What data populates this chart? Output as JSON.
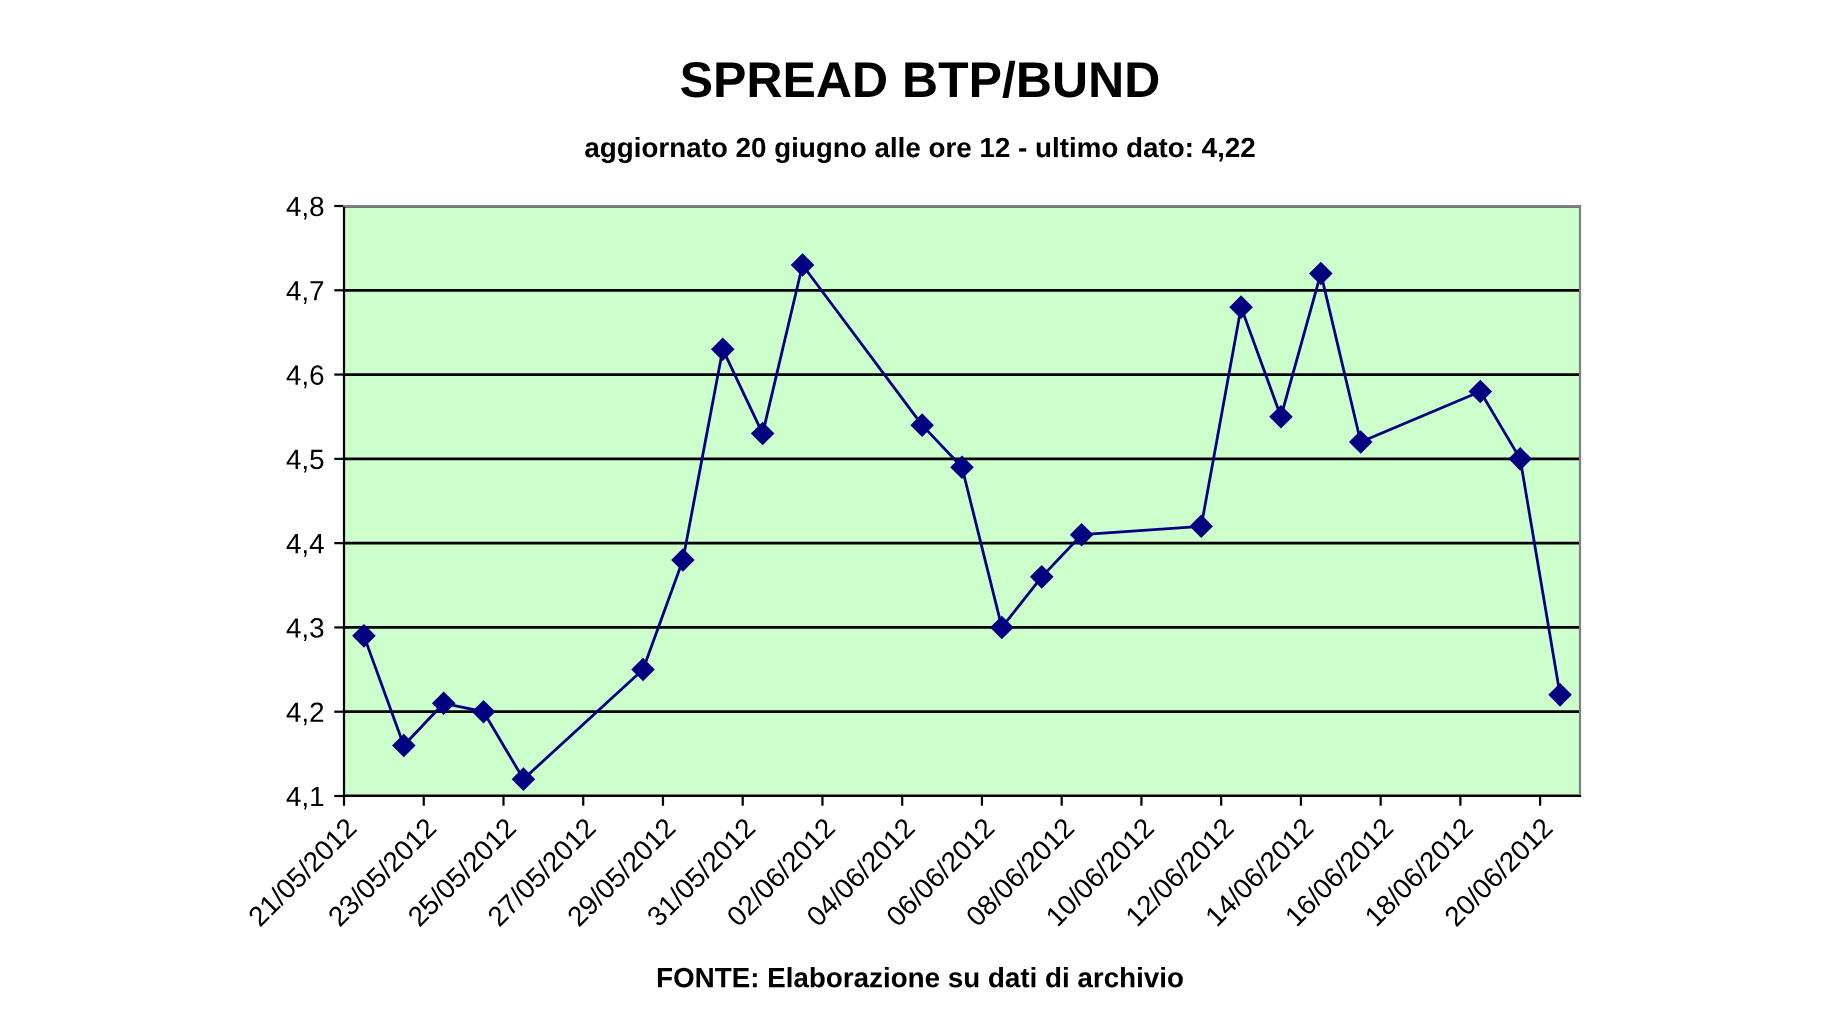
{
  "chart_data": {
    "type": "line",
    "title": "SPREAD BTP/BUND",
    "subtitle": "aggiornato 20 giugno alle ore 12 - ultimo dato: 4,22",
    "annotations": [
      "FONTE: Elaborazione su dati di archivio"
    ],
    "x": [
      "2012-05-21T12:00",
      "2012-05-22T12:00",
      "2012-05-23T12:00",
      "2012-05-24T12:00",
      "2012-05-25T12:00",
      "2012-05-28T12:00",
      "2012-05-29T12:00",
      "2012-05-30T12:00",
      "2012-05-31T12:00",
      "2012-06-01T12:00",
      "2012-06-04T12:00",
      "2012-06-05T12:00",
      "2012-06-06T12:00",
      "2012-06-07T12:00",
      "2012-06-08T12:00",
      "2012-06-11T12:00",
      "2012-06-12T12:00",
      "2012-06-13T12:00",
      "2012-06-14T12:00",
      "2012-06-15T12:00",
      "2012-06-18T12:00",
      "2012-06-19T12:00",
      "2012-06-20T12:00"
    ],
    "series": [
      {
        "color": "#000080",
        "values": [
          4.29,
          4.16,
          4.21,
          4.2,
          4.12,
          4.25,
          4.38,
          4.63,
          4.53,
          4.73,
          4.54,
          4.49,
          4.3,
          4.36,
          4.41,
          4.42,
          4.68,
          4.55,
          4.72,
          4.52,
          4.58,
          4.5,
          4.22
        ]
      }
    ],
    "xlim": [
      "2012-05-21",
      "2012-06-21"
    ],
    "xticks": [
      {
        "value": "2012-05-21",
        "label": "21/05/2012"
      },
      {
        "value": "2012-05-23",
        "label": "23/05/2012"
      },
      {
        "value": "2012-05-25",
        "label": "25/05/2012"
      },
      {
        "value": "2012-05-27",
        "label": "27/05/2012"
      },
      {
        "value": "2012-05-29",
        "label": "29/05/2012"
      },
      {
        "value": "2012-05-31",
        "label": "31/05/2012"
      },
      {
        "value": "2012-06-02",
        "label": "02/06/2012"
      },
      {
        "value": "2012-06-04",
        "label": "04/06/2012"
      },
      {
        "value": "2012-06-06",
        "label": "06/06/2012"
      },
      {
        "value": "2012-06-08",
        "label": "08/06/2012"
      },
      {
        "value": "2012-06-10",
        "label": "10/06/2012"
      },
      {
        "value": "2012-06-12",
        "label": "12/06/2012"
      },
      {
        "value": "2012-06-14",
        "label": "14/06/2012"
      },
      {
        "value": "2012-06-16",
        "label": "16/06/2012"
      },
      {
        "value": "2012-06-18",
        "label": "18/06/2012"
      },
      {
        "value": "2012-06-20",
        "label": "20/06/2012"
      }
    ],
    "ylim": [
      4.1,
      4.8
    ],
    "yticks": [
      {
        "value": 4.1,
        "label": "4,1"
      },
      {
        "value": 4.2,
        "label": "4,2"
      },
      {
        "value": 4.3,
        "label": "4,3"
      },
      {
        "value": 4.4,
        "label": "4,4"
      },
      {
        "value": 4.5,
        "label": "4,5"
      },
      {
        "value": 4.6,
        "label": "4,6"
      },
      {
        "value": 4.7,
        "label": "4,7"
      },
      {
        "value": 4.8,
        "label": "4,8"
      }
    ],
    "grid": "y",
    "marker": "diamond",
    "line_style": "solid",
    "legend": false
  }
}
